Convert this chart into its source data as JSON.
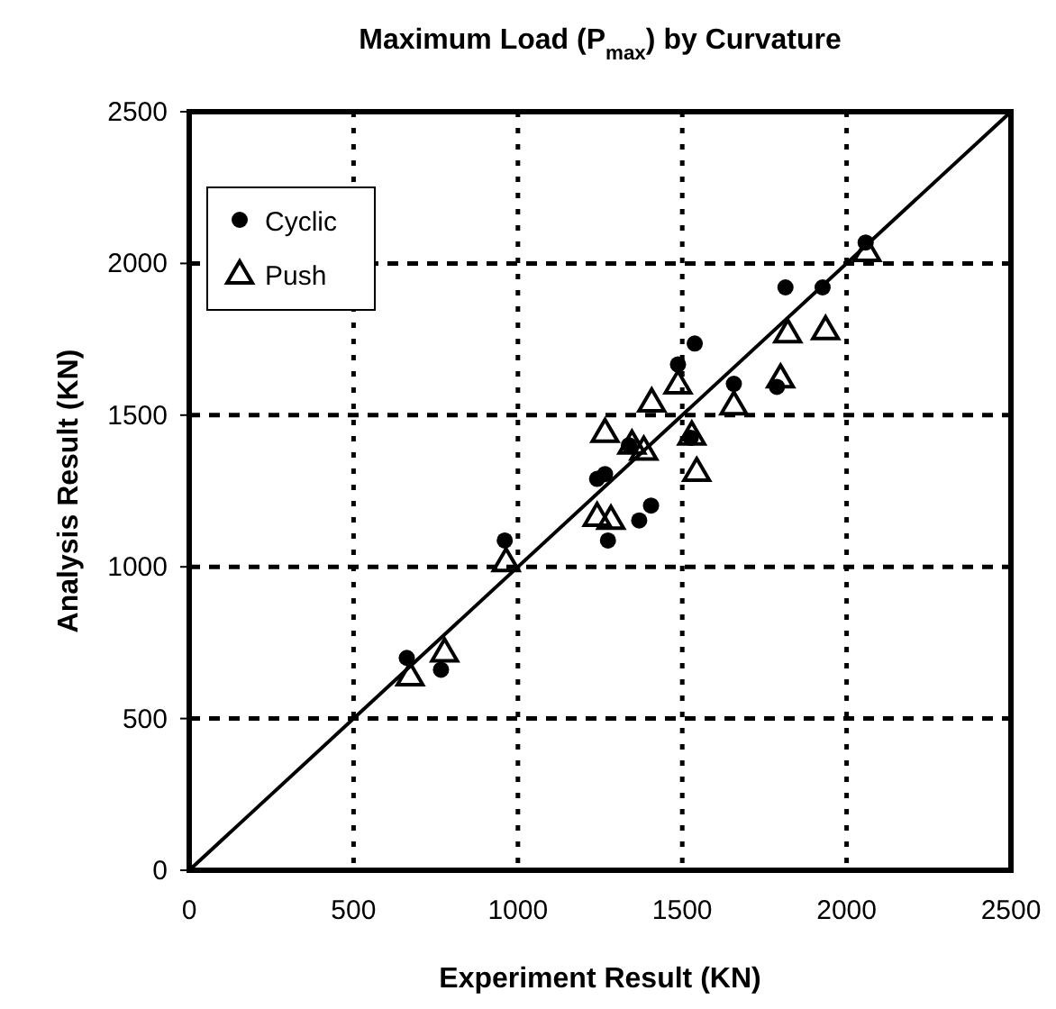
{
  "chart_data": {
    "type": "scatter",
    "title": "Maximum Load (P$_{max}$) by Curvature",
    "xlabel": "Experiment Result (KN)",
    "ylabel": "Analysis Result (KN)",
    "xlim": [
      0,
      2500
    ],
    "ylim": [
      0,
      2500
    ],
    "xticks": [
      0,
      500,
      1000,
      1500,
      2000,
      2500
    ],
    "yticks": [
      0,
      500,
      1000,
      1500,
      2000,
      2500
    ],
    "grid": true,
    "legend": "top left",
    "series": [
      {
        "name": "Cyclic",
        "color": "#000000",
        "marker": "circle",
        "x": [
          662,
          766,
          960,
          1241,
          1265,
          1274,
          1369,
          1405,
          1338,
          1487,
          1538,
          1526,
          1657,
          1788,
          1814,
          1927,
          2058
        ],
        "values": [
          700,
          661,
          1087,
          1290,
          1306,
          1087,
          1153,
          1202,
          1401,
          1667,
          1736,
          1425,
          1603,
          1593,
          1921,
          1921,
          2069
        ]
      },
      {
        "name": "Push",
        "color": "#000000",
        "marker": "triangle",
        "x": [
          672,
          777,
          964,
          1265,
          1241,
          1283,
          1347,
          1383,
          1407,
          1487,
          1529,
          1544,
          1657,
          1799,
          1821,
          1936,
          2062
        ],
        "values": [
          641,
          720,
          1018,
          1444,
          1167,
          1157,
          1405,
          1385,
          1544,
          1603,
          1435,
          1315,
          1534,
          1623,
          1772,
          1782,
          2040
        ]
      },
      {
        "type": "line",
        "color": "#000000",
        "line_style": "solid",
        "x": [
          0,
          2500
        ],
        "values": [
          0,
          2500
        ]
      }
    ]
  }
}
